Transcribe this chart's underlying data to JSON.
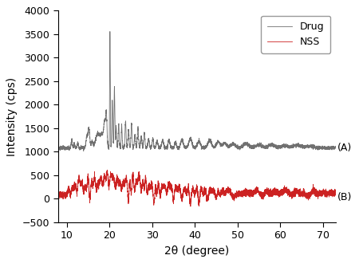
{
  "title": "",
  "xlabel": "2θ (degree)",
  "ylabel": "Intensity (cps)",
  "xlim": [
    8,
    73
  ],
  "ylim": [
    -500,
    4000
  ],
  "yticks": [
    -500,
    0,
    500,
    1000,
    1500,
    2000,
    2500,
    3000,
    3500,
    4000
  ],
  "xticks": [
    10,
    20,
    30,
    40,
    50,
    60,
    70
  ],
  "drug_color": "#707070",
  "nss_color": "#cc2222",
  "label_A": "(A)",
  "label_B": "(B)",
  "legend_drug": "Drug",
  "legend_nss": "NSS",
  "drug_baseline": 1050,
  "nss_baseline": 0,
  "figwidth": 4.5,
  "figheight": 3.3,
  "dpi": 100
}
